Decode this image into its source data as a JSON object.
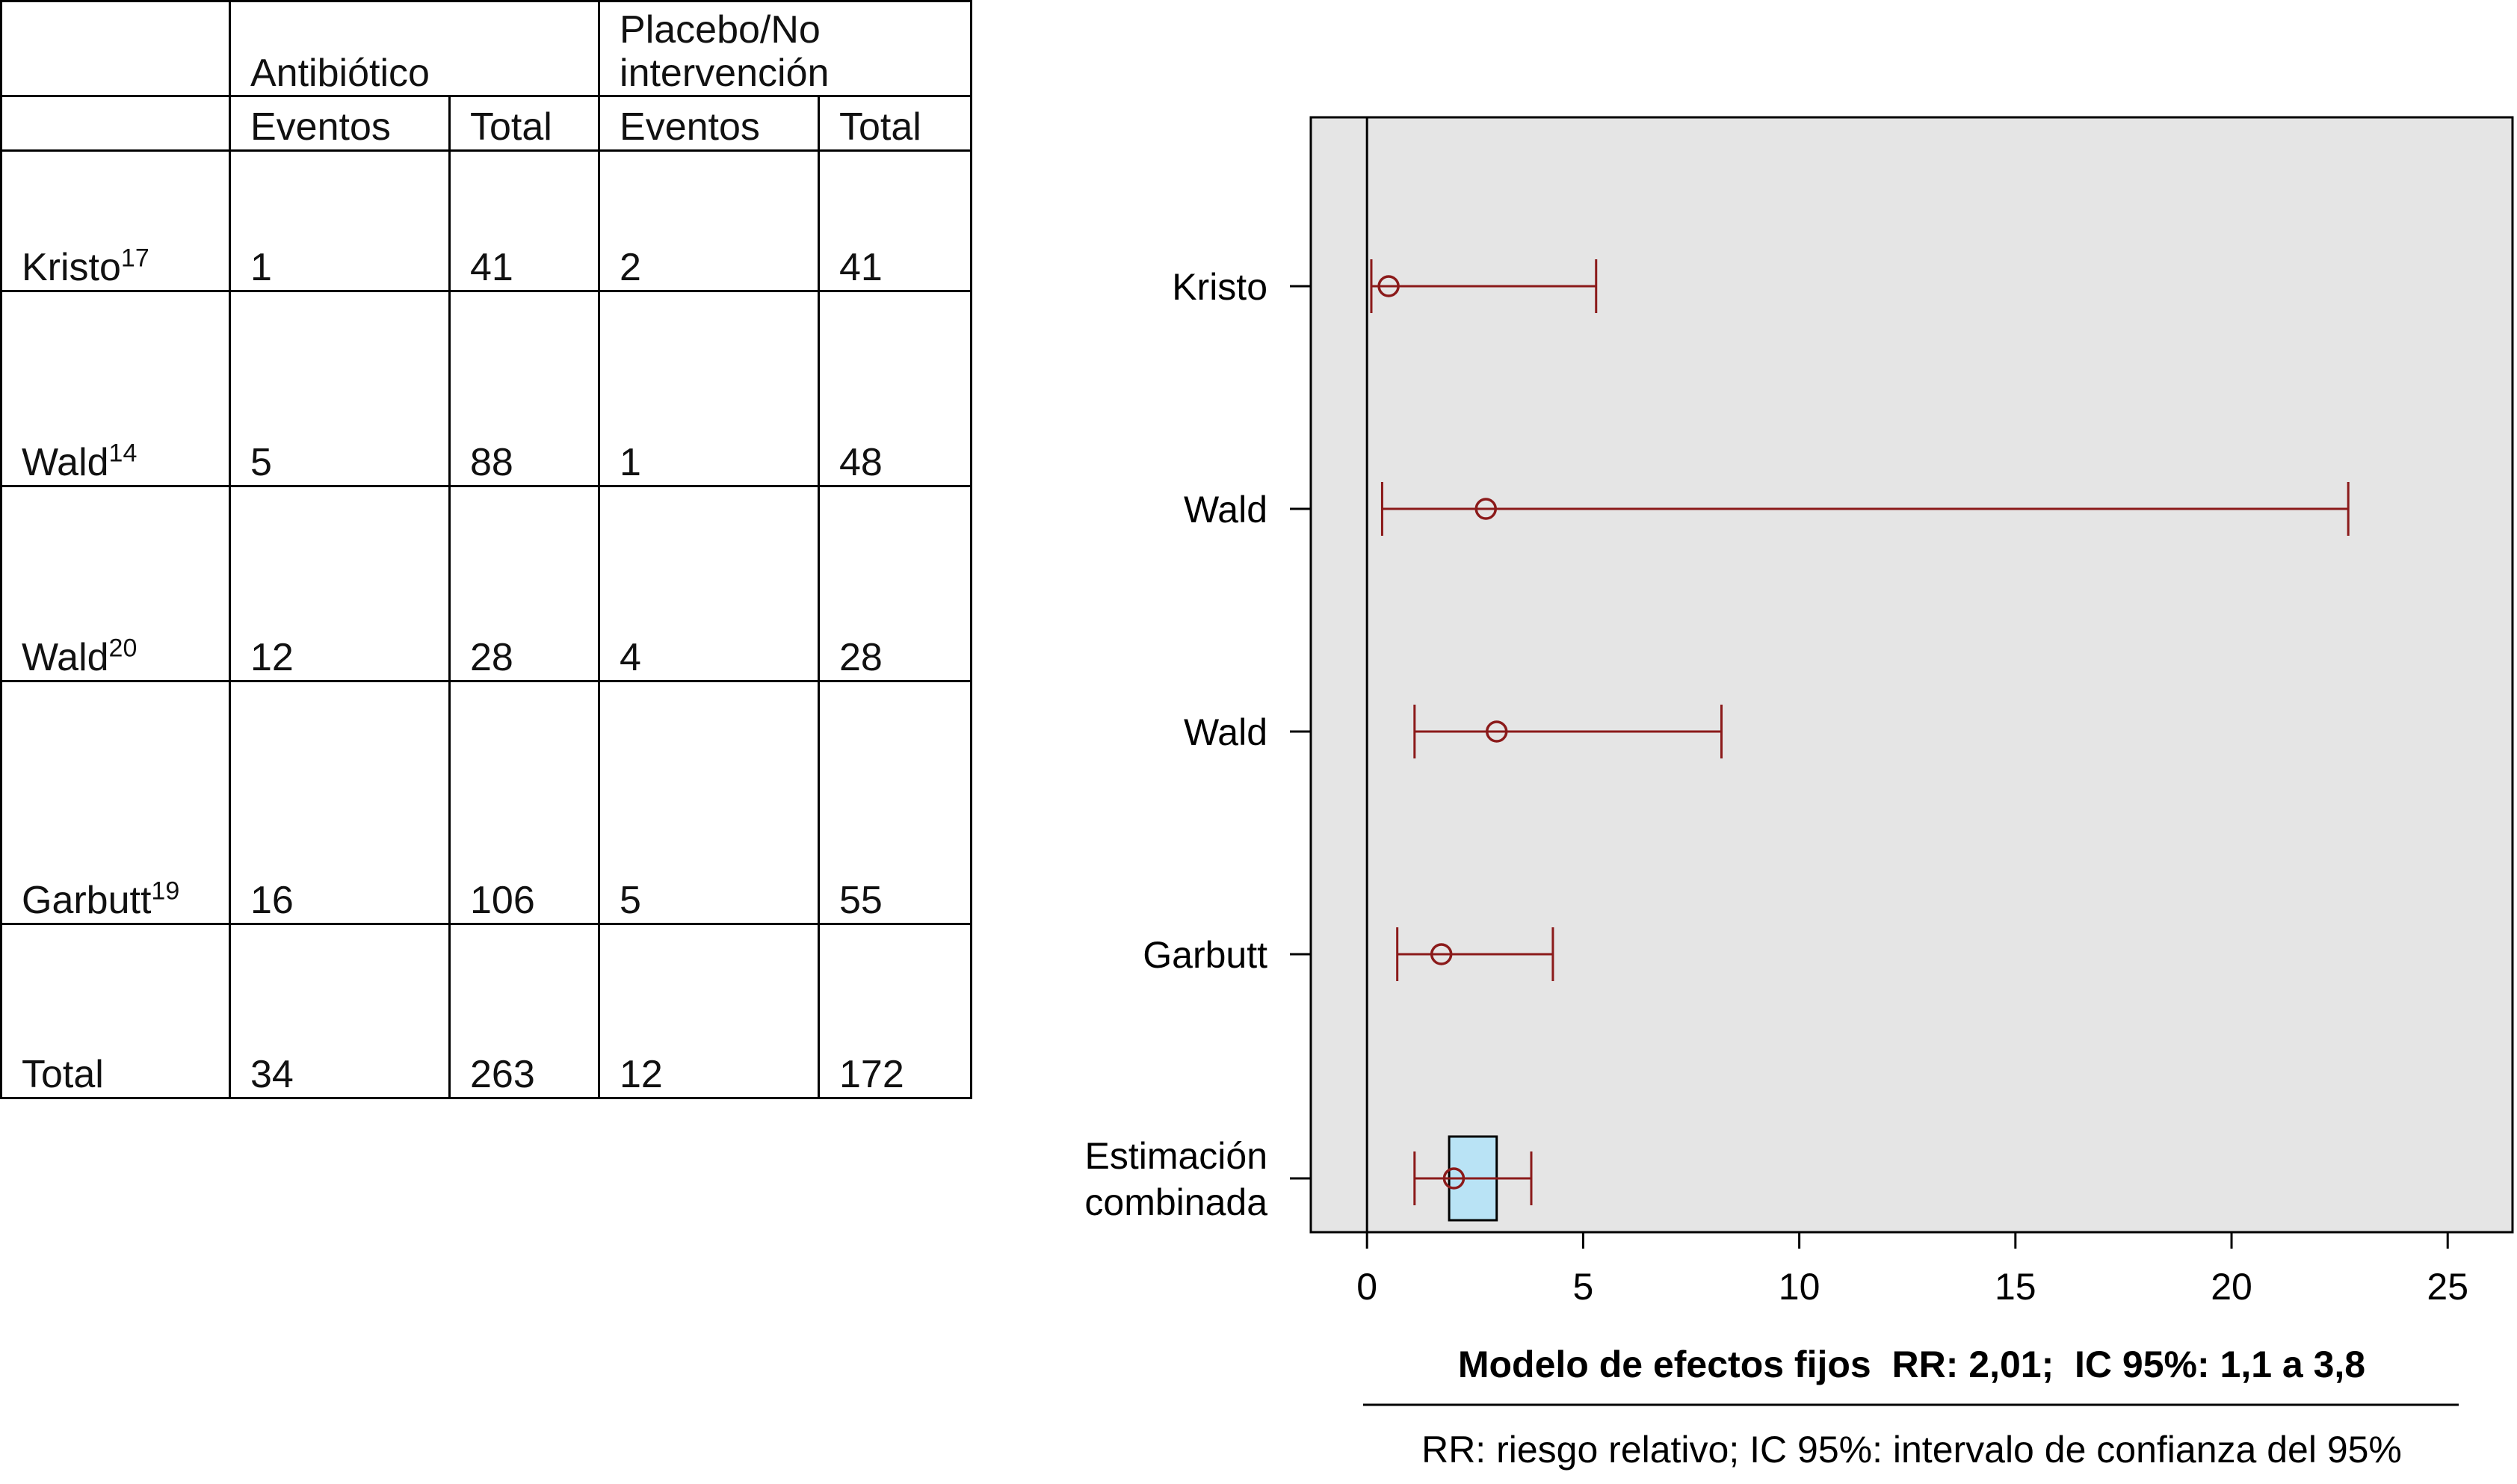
{
  "table": {
    "group_headers": [
      "Antibiótico",
      "Placebo/No intervención"
    ],
    "group_header_lines": [
      [
        "Antibiótico"
      ],
      [
        "Placebo/No",
        "intervención"
      ]
    ],
    "sub_headers": [
      "Eventos",
      "Total",
      "Eventos",
      "Total"
    ],
    "rows": [
      {
        "study": "Kristo",
        "ref": "17",
        "values": [
          "1",
          "41",
          "2",
          "41"
        ]
      },
      {
        "study": "Wald",
        "ref": "14",
        "values": [
          "5",
          "88",
          "1",
          "48"
        ]
      },
      {
        "study": "Wald",
        "ref": "20",
        "values": [
          "12",
          "28",
          "4",
          "28"
        ]
      },
      {
        "study": "Garbutt",
        "ref": "19",
        "values": [
          "16",
          "106",
          "5",
          "55"
        ]
      },
      {
        "study": "Total",
        "ref": "",
        "values": [
          "34",
          "263",
          "12",
          "172"
        ]
      }
    ]
  },
  "chart_data": {
    "type": "forest",
    "title": "",
    "xlim": [
      -1.3,
      26.5
    ],
    "xticks": [
      0,
      5,
      10,
      15,
      20,
      25
    ],
    "reference_line": 0,
    "categories": [
      "Kristo",
      "Wald",
      "Wald",
      "Garbutt",
      "Estimación combinada"
    ],
    "category_lines": [
      [
        "Kristo"
      ],
      [
        "Wald"
      ],
      [
        "Wald"
      ],
      [
        "Garbutt"
      ],
      [
        "Estimación",
        "combinada"
      ]
    ],
    "estimates": [
      0.5,
      2.75,
      3.0,
      1.72,
      2.01
    ],
    "ci_lower": [
      0.1,
      0.35,
      1.1,
      0.7,
      1.1
    ],
    "ci_upper": [
      5.3,
      22.7,
      8.2,
      4.3,
      3.8
    ],
    "pooled_box": [
      1.9,
      3.0
    ],
    "caption": "Modelo de efectos fijos  RR: 2,01;  IC 95%: 1,1 a 3,8",
    "footnote": "RR: riesgo relativo; IC 95%: intervalo de confianza del 95%",
    "colors": {
      "panel": "#e5e5e5",
      "ci": "#8b1a1a",
      "box": "#b9e3f5"
    }
  }
}
